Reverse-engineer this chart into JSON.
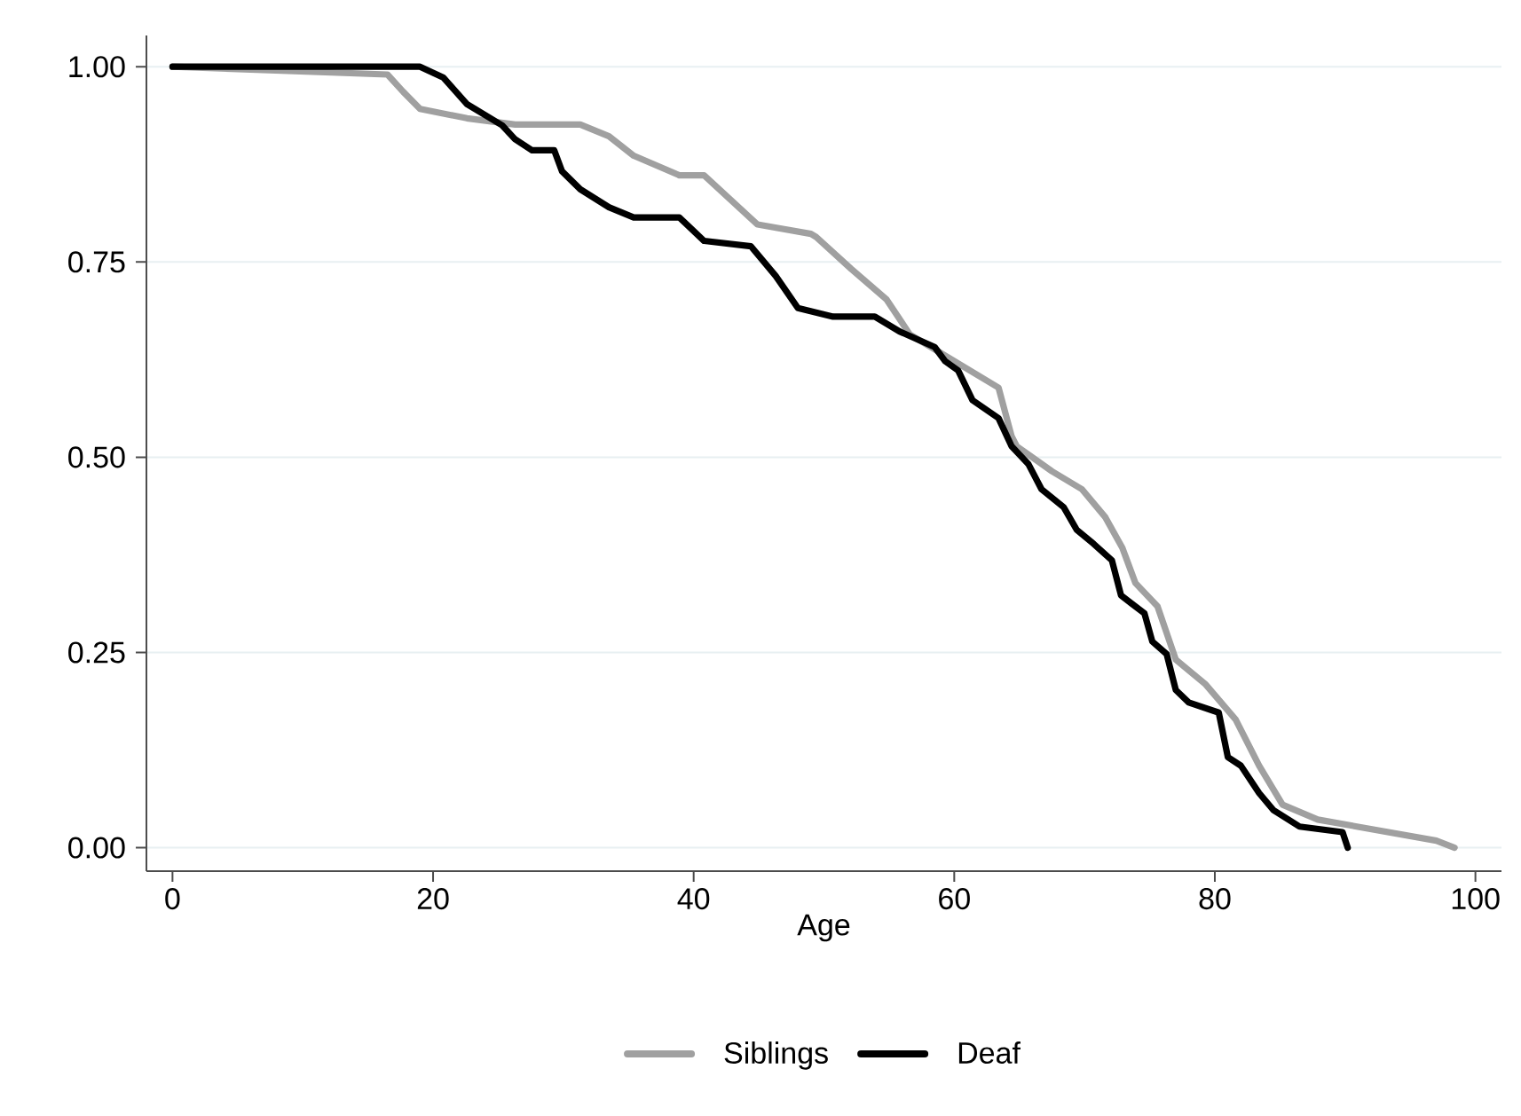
{
  "chart_data": {
    "type": "line",
    "xlabel": "Age",
    "xlim": [
      -2,
      102
    ],
    "ylim": [
      -0.03,
      1.04
    ],
    "xticks": [
      0,
      20,
      40,
      60,
      80,
      100
    ],
    "yticks": [
      {
        "value": 0,
        "label": "0.00"
      },
      {
        "value": 0.25,
        "label": "0.25"
      },
      {
        "value": 0.5,
        "label": "0.50"
      },
      {
        "value": 0.75,
        "label": "0.75"
      },
      {
        "value": 1,
        "label": "1.00"
      }
    ],
    "grid": "y",
    "legend": "bottom",
    "marker": "none",
    "line_style": "solid",
    "series": [
      {
        "name": "Siblings",
        "color": "#a0a0a0",
        "x": [
          0,
          16.5,
          17.7,
          19.0,
          22.6,
          26.3,
          31.3,
          33.5,
          35.4,
          38.9,
          40.8,
          44.9,
          49.0,
          49.4,
          52.1,
          54.8,
          56.6,
          59.3,
          63.4,
          64.4,
          64.8,
          67.5,
          69.8,
          71.6,
          72.9,
          73.9,
          75.6,
          77.0,
          79.3,
          81.6,
          83.4,
          85.2,
          87.9,
          97.0,
          98.4
        ],
        "values": [
          1.0,
          0.99,
          0.968,
          0.946,
          0.934,
          0.926,
          0.926,
          0.911,
          0.886,
          0.861,
          0.861,
          0.798,
          0.786,
          0.782,
          0.741,
          0.702,
          0.657,
          0.63,
          0.589,
          0.527,
          0.514,
          0.482,
          0.459,
          0.423,
          0.384,
          0.339,
          0.309,
          0.241,
          0.209,
          0.164,
          0.105,
          0.055,
          0.036,
          0.009,
          0.0
        ]
      },
      {
        "name": "Deaf",
        "color": "#000000",
        "x": [
          0,
          19.0,
          20.8,
          22.6,
          25.3,
          26.3,
          27.6,
          29.3,
          29.9,
          31.3,
          33.5,
          35.4,
          38.9,
          40.8,
          44.4,
          46.3,
          48.0,
          50.7,
          53.9,
          55.8,
          58.5,
          59.3,
          60.3,
          61.4,
          63.4,
          64.4,
          65.7,
          66.7,
          68.4,
          69.4,
          70.7,
          72.1,
          72.8,
          74.6,
          75.2,
          76.3,
          77.0,
          78.0,
          80.3,
          81.0,
          82.0,
          83.4,
          84.5,
          86.5,
          89.8,
          90.2
        ],
        "values": [
          1.0,
          1.0,
          0.986,
          0.952,
          0.925,
          0.907,
          0.893,
          0.893,
          0.866,
          0.843,
          0.82,
          0.807,
          0.807,
          0.777,
          0.77,
          0.732,
          0.691,
          0.68,
          0.68,
          0.661,
          0.641,
          0.623,
          0.611,
          0.573,
          0.55,
          0.514,
          0.491,
          0.459,
          0.436,
          0.407,
          0.389,
          0.368,
          0.323,
          0.3,
          0.264,
          0.248,
          0.202,
          0.186,
          0.173,
          0.116,
          0.105,
          0.07,
          0.048,
          0.027,
          0.02,
          0.0
        ]
      }
    ]
  }
}
